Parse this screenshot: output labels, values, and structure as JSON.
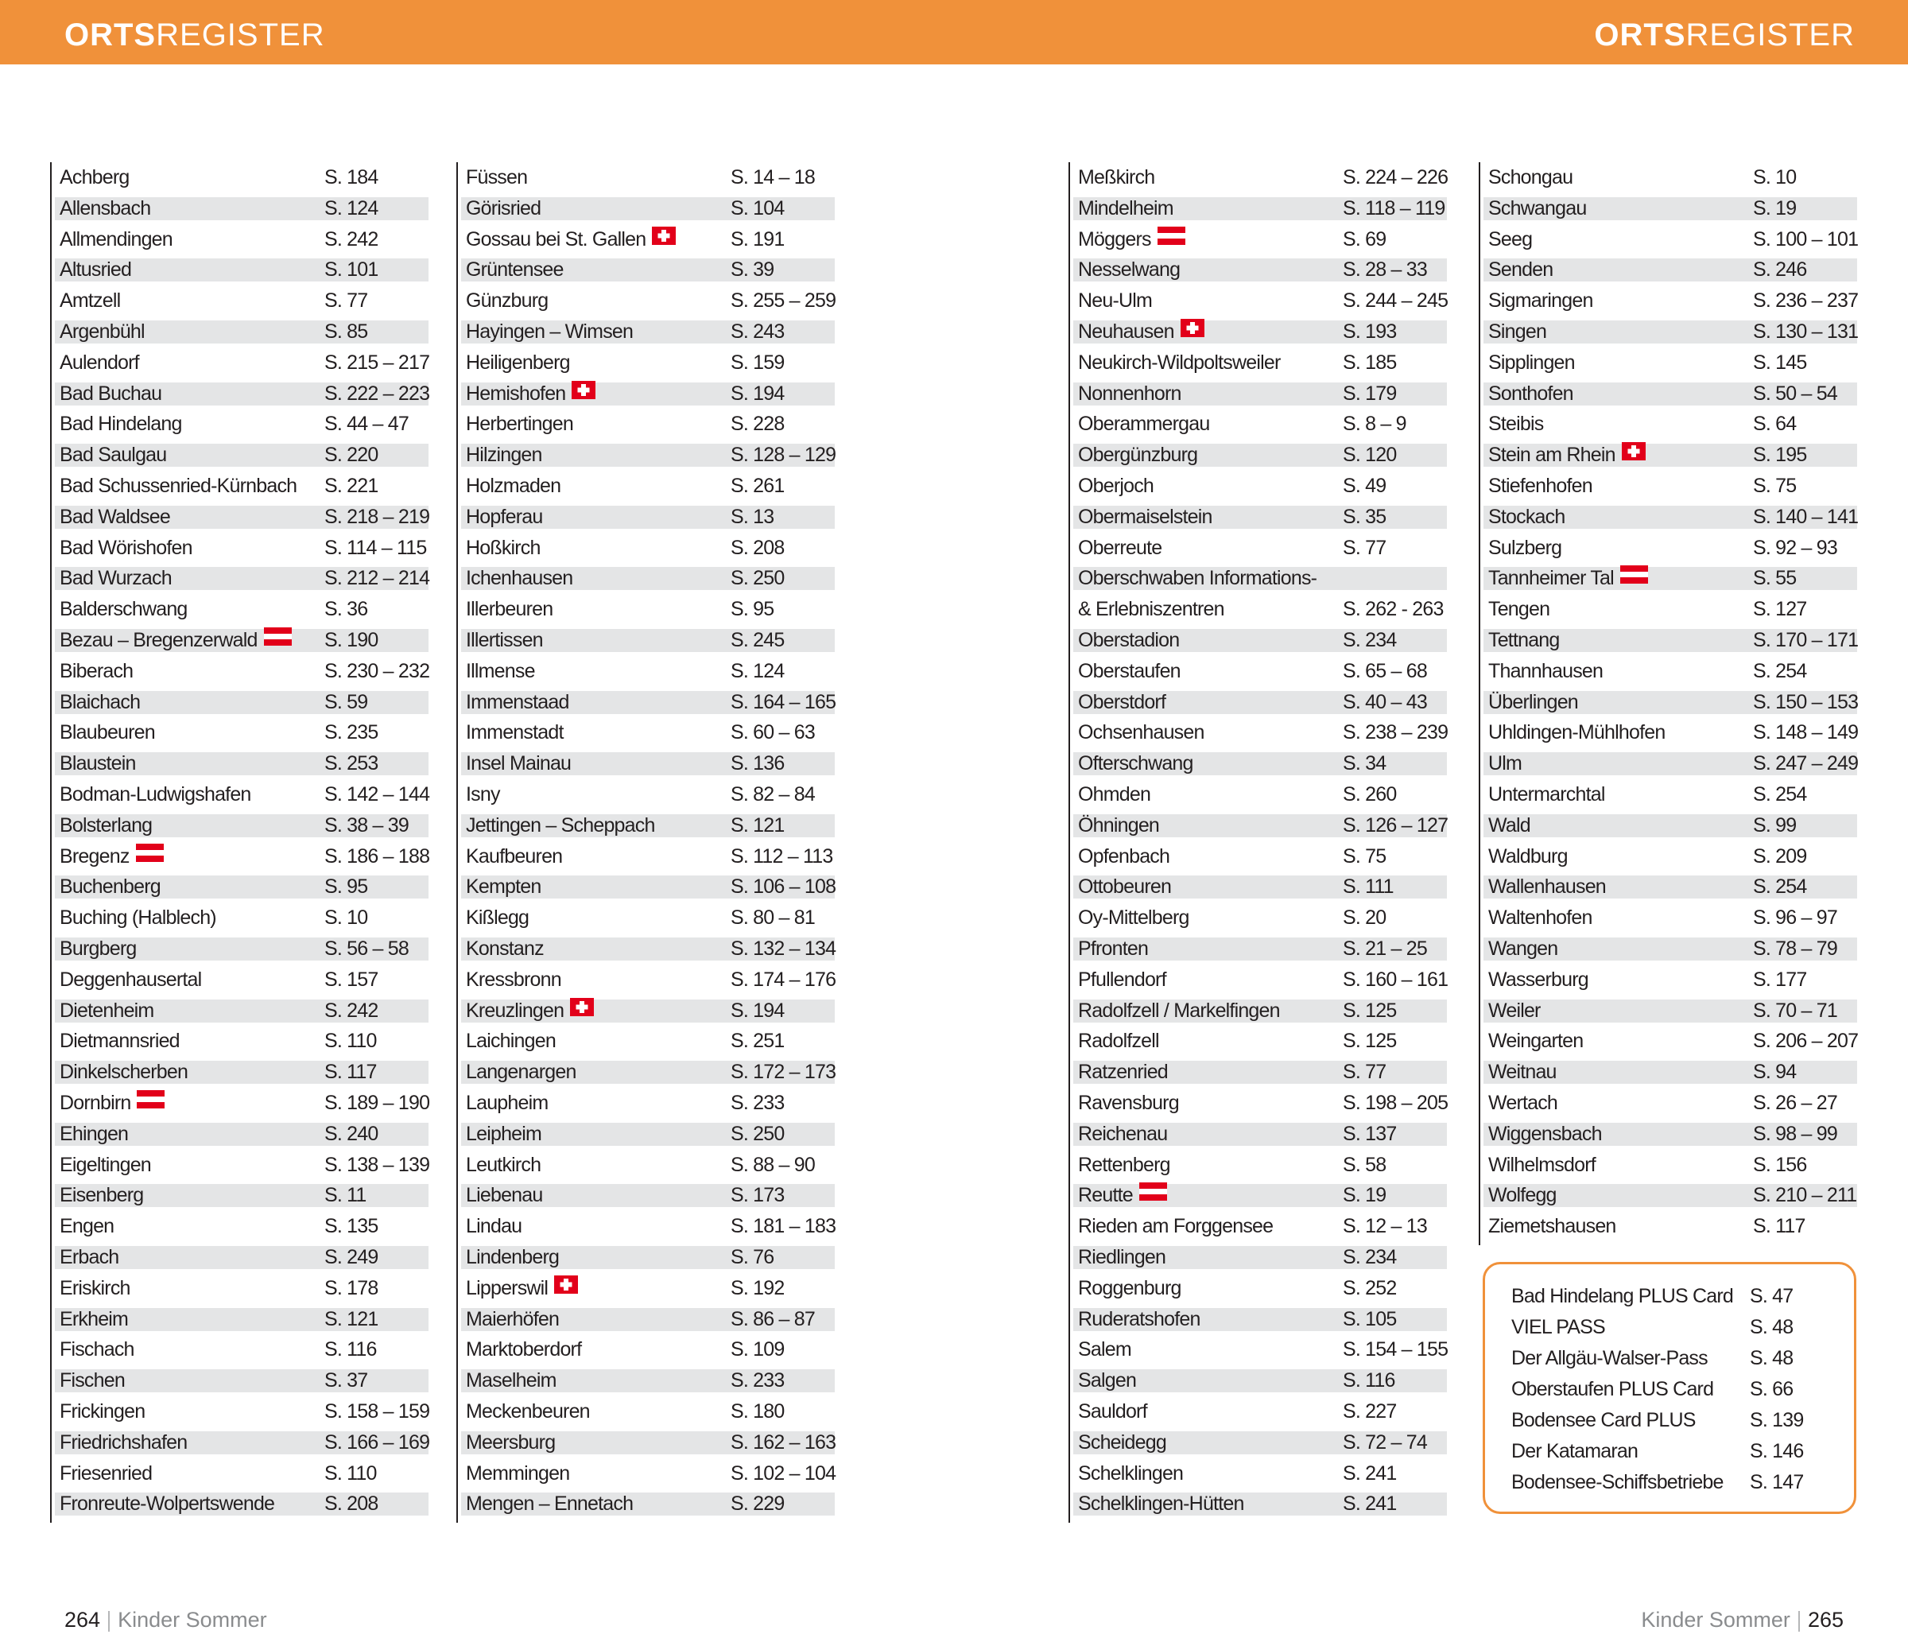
{
  "header": {
    "left": {
      "bold": "ORTS",
      "rest": "REGISTER"
    },
    "right": {
      "bold": "ORTS",
      "rest": "REGISTER"
    }
  },
  "columns": [
    [
      {
        "name": "Achberg",
        "pages": "S. 184"
      },
      {
        "name": "Allensbach",
        "pages": "S. 124"
      },
      {
        "name": "Allmendingen",
        "pages": "S. 242"
      },
      {
        "name": "Altusried",
        "pages": "S. 101"
      },
      {
        "name": "Amtzell",
        "pages": "S. 77"
      },
      {
        "name": "Argenbühl",
        "pages": "S. 85"
      },
      {
        "name": "Aulendorf",
        "pages": "S. 215 – 217"
      },
      {
        "name": "Bad Buchau",
        "pages": "S. 222 – 223"
      },
      {
        "name": "Bad Hindelang",
        "pages": "S. 44 – 47"
      },
      {
        "name": "Bad Saulgau",
        "pages": "S. 220"
      },
      {
        "name": "Bad Schussenried-Kürnbach",
        "pages": "S. 221"
      },
      {
        "name": "Bad Waldsee",
        "pages": "S. 218 – 219"
      },
      {
        "name": "Bad Wörishofen",
        "pages": "S. 114 – 115"
      },
      {
        "name": "Bad Wurzach",
        "pages": "S. 212 – 214"
      },
      {
        "name": "Balderschwang",
        "pages": "S. 36"
      },
      {
        "name": "Bezau – Bregenzerwald",
        "pages": "S. 190",
        "flag": "AT"
      },
      {
        "name": "Biberach",
        "pages": "S. 230 – 232"
      },
      {
        "name": "Blaichach",
        "pages": "S. 59"
      },
      {
        "name": "Blaubeuren",
        "pages": "S. 235"
      },
      {
        "name": "Blaustein",
        "pages": "S. 253"
      },
      {
        "name": "Bodman-Ludwigshafen",
        "pages": "S. 142 – 144"
      },
      {
        "name": "Bolsterlang",
        "pages": "S. 38 – 39"
      },
      {
        "name": "Bregenz",
        "pages": "S. 186 – 188",
        "flag": "AT"
      },
      {
        "name": "Buchenberg",
        "pages": "S. 95"
      },
      {
        "name": "Buching (Halblech)",
        "pages": "S. 10"
      },
      {
        "name": "Burgberg",
        "pages": "S. 56 – 58"
      },
      {
        "name": "Deggenhausertal",
        "pages": "S. 157"
      },
      {
        "name": "Dietenheim",
        "pages": "S. 242"
      },
      {
        "name": "Dietmannsried",
        "pages": "S. 110"
      },
      {
        "name": "Dinkelscherben",
        "pages": "S. 117"
      },
      {
        "name": "Dornbirn",
        "pages": "S. 189 – 190",
        "flag": "AT"
      },
      {
        "name": "Ehingen",
        "pages": "S. 240"
      },
      {
        "name": "Eigeltingen",
        "pages": "S. 138 – 139"
      },
      {
        "name": "Eisenberg",
        "pages": "S. 11"
      },
      {
        "name": "Engen",
        "pages": "S. 135"
      },
      {
        "name": "Erbach",
        "pages": "S. 249"
      },
      {
        "name": "Eriskirch",
        "pages": "S. 178"
      },
      {
        "name": "Erkheim",
        "pages": "S. 121"
      },
      {
        "name": "Fischach",
        "pages": "S. 116"
      },
      {
        "name": "Fischen",
        "pages": "S. 37"
      },
      {
        "name": "Frickingen",
        "pages": "S. 158 – 159"
      },
      {
        "name": "Friedrichshafen",
        "pages": "S. 166 – 169"
      },
      {
        "name": "Friesenried",
        "pages": "S. 110"
      },
      {
        "name": "Fronreute-Wolpertswende",
        "pages": "S. 208"
      }
    ],
    [
      {
        "name": "Füssen",
        "pages": "S. 14 – 18"
      },
      {
        "name": "Görisried",
        "pages": "S. 104"
      },
      {
        "name": "Gossau bei St. Gallen",
        "pages": "S. 191",
        "flag": "CH"
      },
      {
        "name": "Grüntensee",
        "pages": "S. 39"
      },
      {
        "name": "Günzburg",
        "pages": "S. 255 – 259"
      },
      {
        "name": "Hayingen – Wimsen",
        "pages": "S. 243"
      },
      {
        "name": "Heiligenberg",
        "pages": "S. 159"
      },
      {
        "name": "Hemishofen",
        "pages": "S. 194",
        "flag": "CH"
      },
      {
        "name": "Herbertingen",
        "pages": "S. 228"
      },
      {
        "name": "Hilzingen",
        "pages": "S. 128 – 129"
      },
      {
        "name": "Holzmaden",
        "pages": "S. 261"
      },
      {
        "name": "Hopferau",
        "pages": "S. 13"
      },
      {
        "name": "Hoßkirch",
        "pages": "S. 208"
      },
      {
        "name": "Ichenhausen",
        "pages": "S. 250"
      },
      {
        "name": "Illerbeuren",
        "pages": "S. 95"
      },
      {
        "name": "Illertissen",
        "pages": "S. 245"
      },
      {
        "name": "Illmense",
        "pages": "S. 124"
      },
      {
        "name": "Immenstaad",
        "pages": "S. 164 – 165"
      },
      {
        "name": "Immenstadt",
        "pages": "S. 60 – 63"
      },
      {
        "name": "Insel Mainau",
        "pages": "S. 136"
      },
      {
        "name": "Isny",
        "pages": "S. 82 – 84"
      },
      {
        "name": "Jettingen – Scheppach",
        "pages": "S. 121"
      },
      {
        "name": "Kaufbeuren",
        "pages": "S. 112 – 113"
      },
      {
        "name": "Kempten",
        "pages": "S. 106 – 108"
      },
      {
        "name": "Kißlegg",
        "pages": "S. 80 – 81"
      },
      {
        "name": "Konstanz",
        "pages": "S. 132 – 134"
      },
      {
        "name": "Kressbronn",
        "pages": "S. 174 – 176"
      },
      {
        "name": "Kreuzlingen",
        "pages": "S. 194",
        "flag": "CH"
      },
      {
        "name": "Laichingen",
        "pages": "S. 251"
      },
      {
        "name": "Langenargen",
        "pages": "S. 172 – 173"
      },
      {
        "name": "Laupheim",
        "pages": "S. 233"
      },
      {
        "name": "Leipheim",
        "pages": "S. 250"
      },
      {
        "name": "Leutkirch",
        "pages": "S. 88 – 90"
      },
      {
        "name": "Liebenau",
        "pages": "S. 173"
      },
      {
        "name": "Lindau",
        "pages": "S. 181 – 183"
      },
      {
        "name": "Lindenberg",
        "pages": "S. 76"
      },
      {
        "name": "Lipperswil",
        "pages": "S. 192",
        "flag": "CH"
      },
      {
        "name": "Maierhöfen",
        "pages": "S. 86 – 87"
      },
      {
        "name": "Marktoberdorf",
        "pages": "S. 109"
      },
      {
        "name": "Maselheim",
        "pages": "S. 233"
      },
      {
        "name": "Meckenbeuren",
        "pages": "S. 180"
      },
      {
        "name": "Meersburg",
        "pages": "S. 162 – 163"
      },
      {
        "name": "Memmingen",
        "pages": "S. 102 – 104"
      },
      {
        "name": "Mengen – Ennetach",
        "pages": "S. 229"
      }
    ],
    [
      {
        "name": "Meßkirch",
        "pages": "S. 224 – 226"
      },
      {
        "name": "Mindelheim",
        "pages": "S. 118 – 119"
      },
      {
        "name": "Möggers",
        "pages": "S. 69",
        "flag": "AT"
      },
      {
        "name": "Nesselwang",
        "pages": "S. 28 – 33"
      },
      {
        "name": "Neu-Ulm",
        "pages": "S. 244 – 245"
      },
      {
        "name": "Neuhausen",
        "pages": "S. 193",
        "flag": "CH"
      },
      {
        "name": "Neukirch-Wildpoltsweiler",
        "pages": "S. 185"
      },
      {
        "name": "Nonnenhorn",
        "pages": "S. 179"
      },
      {
        "name": "Oberammergau",
        "pages": "S. 8 – 9"
      },
      {
        "name": "Obergünzburg",
        "pages": "S. 120"
      },
      {
        "name": "Oberjoch",
        "pages": "S. 49"
      },
      {
        "name": "Obermaiselstein",
        "pages": "S. 35"
      },
      {
        "name": "Oberreute",
        "pages": "S. 77"
      },
      {
        "name": [
          "Oberschwaben Informations-",
          "& Erlebniszentren"
        ],
        "pages": "S. 262 - 263"
      },
      {
        "name": "Oberstadion",
        "pages": "S. 234"
      },
      {
        "name": "Oberstaufen",
        "pages": "S. 65 – 68"
      },
      {
        "name": "Oberstdorf",
        "pages": "S. 40 – 43"
      },
      {
        "name": "Ochsenhausen",
        "pages": "S. 238 – 239"
      },
      {
        "name": "Ofterschwang",
        "pages": "S. 34"
      },
      {
        "name": "Ohmden",
        "pages": "S. 260"
      },
      {
        "name": "Öhningen",
        "pages": "S. 126 – 127"
      },
      {
        "name": "Opfenbach",
        "pages": "S. 75"
      },
      {
        "name": "Ottobeuren",
        "pages": "S. 111"
      },
      {
        "name": "Oy-Mittelberg",
        "pages": "S. 20"
      },
      {
        "name": "Pfronten",
        "pages": "S. 21 – 25"
      },
      {
        "name": "Pfullendorf",
        "pages": "S. 160 – 161"
      },
      {
        "name": "Radolfzell / Markelfingen",
        "pages": "S. 125"
      },
      {
        "name": "Radolfzell",
        "pages": "S. 125"
      },
      {
        "name": "Ratzenried",
        "pages": "S. 77"
      },
      {
        "name": "Ravensburg",
        "pages": "S. 198 – 205"
      },
      {
        "name": "Reichenau",
        "pages": "S. 137"
      },
      {
        "name": "Rettenberg",
        "pages": "S. 58"
      },
      {
        "name": "Reutte",
        "pages": "S. 19",
        "flag": "AT"
      },
      {
        "name": "Rieden am Forggensee",
        "pages": "S. 12 – 13"
      },
      {
        "name": "Riedlingen",
        "pages": "S. 234"
      },
      {
        "name": "Roggenburg",
        "pages": "S. 252"
      },
      {
        "name": "Ruderatshofen",
        "pages": "S. 105"
      },
      {
        "name": "Salem",
        "pages": "S. 154 – 155"
      },
      {
        "name": "Salgen",
        "pages": "S. 116"
      },
      {
        "name": "Sauldorf",
        "pages": "S. 227"
      },
      {
        "name": "Scheidegg",
        "pages": "S. 72 – 74"
      },
      {
        "name": "Schelklingen",
        "pages": "S. 241"
      },
      {
        "name": "Schelklingen-Hütten",
        "pages": "S. 241"
      }
    ],
    [
      {
        "name": "Schongau",
        "pages": "S. 10"
      },
      {
        "name": "Schwangau",
        "pages": "S. 19"
      },
      {
        "name": "Seeg",
        "pages": "S. 100 – 101"
      },
      {
        "name": "Senden",
        "pages": "S. 246"
      },
      {
        "name": "Sigmaringen",
        "pages": "S. 236 – 237"
      },
      {
        "name": "Singen",
        "pages": "S. 130 – 131"
      },
      {
        "name": "Sipplingen",
        "pages": "S. 145"
      },
      {
        "name": "Sonthofen",
        "pages": "S. 50 – 54"
      },
      {
        "name": "Steibis",
        "pages": "S. 64"
      },
      {
        "name": "Stein am Rhein",
        "pages": "S. 195",
        "flag": "CH"
      },
      {
        "name": "Stiefenhofen",
        "pages": "S. 75"
      },
      {
        "name": "Stockach",
        "pages": "S. 140 – 141"
      },
      {
        "name": "Sulzberg",
        "pages": "S. 92 – 93"
      },
      {
        "name": "Tannheimer Tal",
        "pages": "S. 55",
        "flag": "AT"
      },
      {
        "name": "Tengen",
        "pages": "S. 127"
      },
      {
        "name": "Tettnang",
        "pages": "S. 170 – 171"
      },
      {
        "name": "Thannhausen",
        "pages": "S. 254"
      },
      {
        "name": "Überlingen",
        "pages": "S. 150 – 153"
      },
      {
        "name": "Uhldingen-Mühlhofen",
        "pages": "S. 148 – 149"
      },
      {
        "name": "Ulm",
        "pages": "S. 247 – 249"
      },
      {
        "name": "Untermarchtal",
        "pages": "S. 254"
      },
      {
        "name": "Wald",
        "pages": "S. 99"
      },
      {
        "name": "Waldburg",
        "pages": "S. 209"
      },
      {
        "name": "Wallenhausen",
        "pages": "S. 254"
      },
      {
        "name": "Waltenhofen",
        "pages": "S. 96 – 97"
      },
      {
        "name": "Wangen",
        "pages": "S. 78 – 79"
      },
      {
        "name": "Wasserburg",
        "pages": "S. 177"
      },
      {
        "name": "Weiler",
        "pages": "S. 70 – 71"
      },
      {
        "name": "Weingarten",
        "pages": "S. 206 – 207"
      },
      {
        "name": "Weitnau",
        "pages": "S. 94"
      },
      {
        "name": "Wertach",
        "pages": "S. 26 – 27"
      },
      {
        "name": "Wiggensbach",
        "pages": "S. 98 – 99"
      },
      {
        "name": "Wilhelmsdorf",
        "pages": "S. 156"
      },
      {
        "name": "Wolfegg",
        "pages": "S. 210 – 211"
      },
      {
        "name": "Ziemetshausen",
        "pages": "S. 117"
      }
    ]
  ],
  "cards": [
    {
      "name": "Bad Hindelang PLUS Card",
      "pages": "S. 47"
    },
    {
      "name": "VIEL PASS",
      "pages": "S. 48"
    },
    {
      "name": "Der Allgäu-Walser-Pass",
      "pages": "S. 48"
    },
    {
      "name": "Oberstaufen PLUS Card",
      "pages": "S. 66"
    },
    {
      "name": "Bodensee Card PLUS",
      "pages": "S. 139"
    },
    {
      "name": "Der Katamaran",
      "pages": "S. 146"
    },
    {
      "name": "Bodensee-Schiffsbetriebe",
      "pages": "S. 147"
    }
  ],
  "footer": {
    "left": {
      "page": 264,
      "title": "Kinder Sommer"
    },
    "right": {
      "page": 265,
      "title": "Kinder Sommer"
    }
  }
}
